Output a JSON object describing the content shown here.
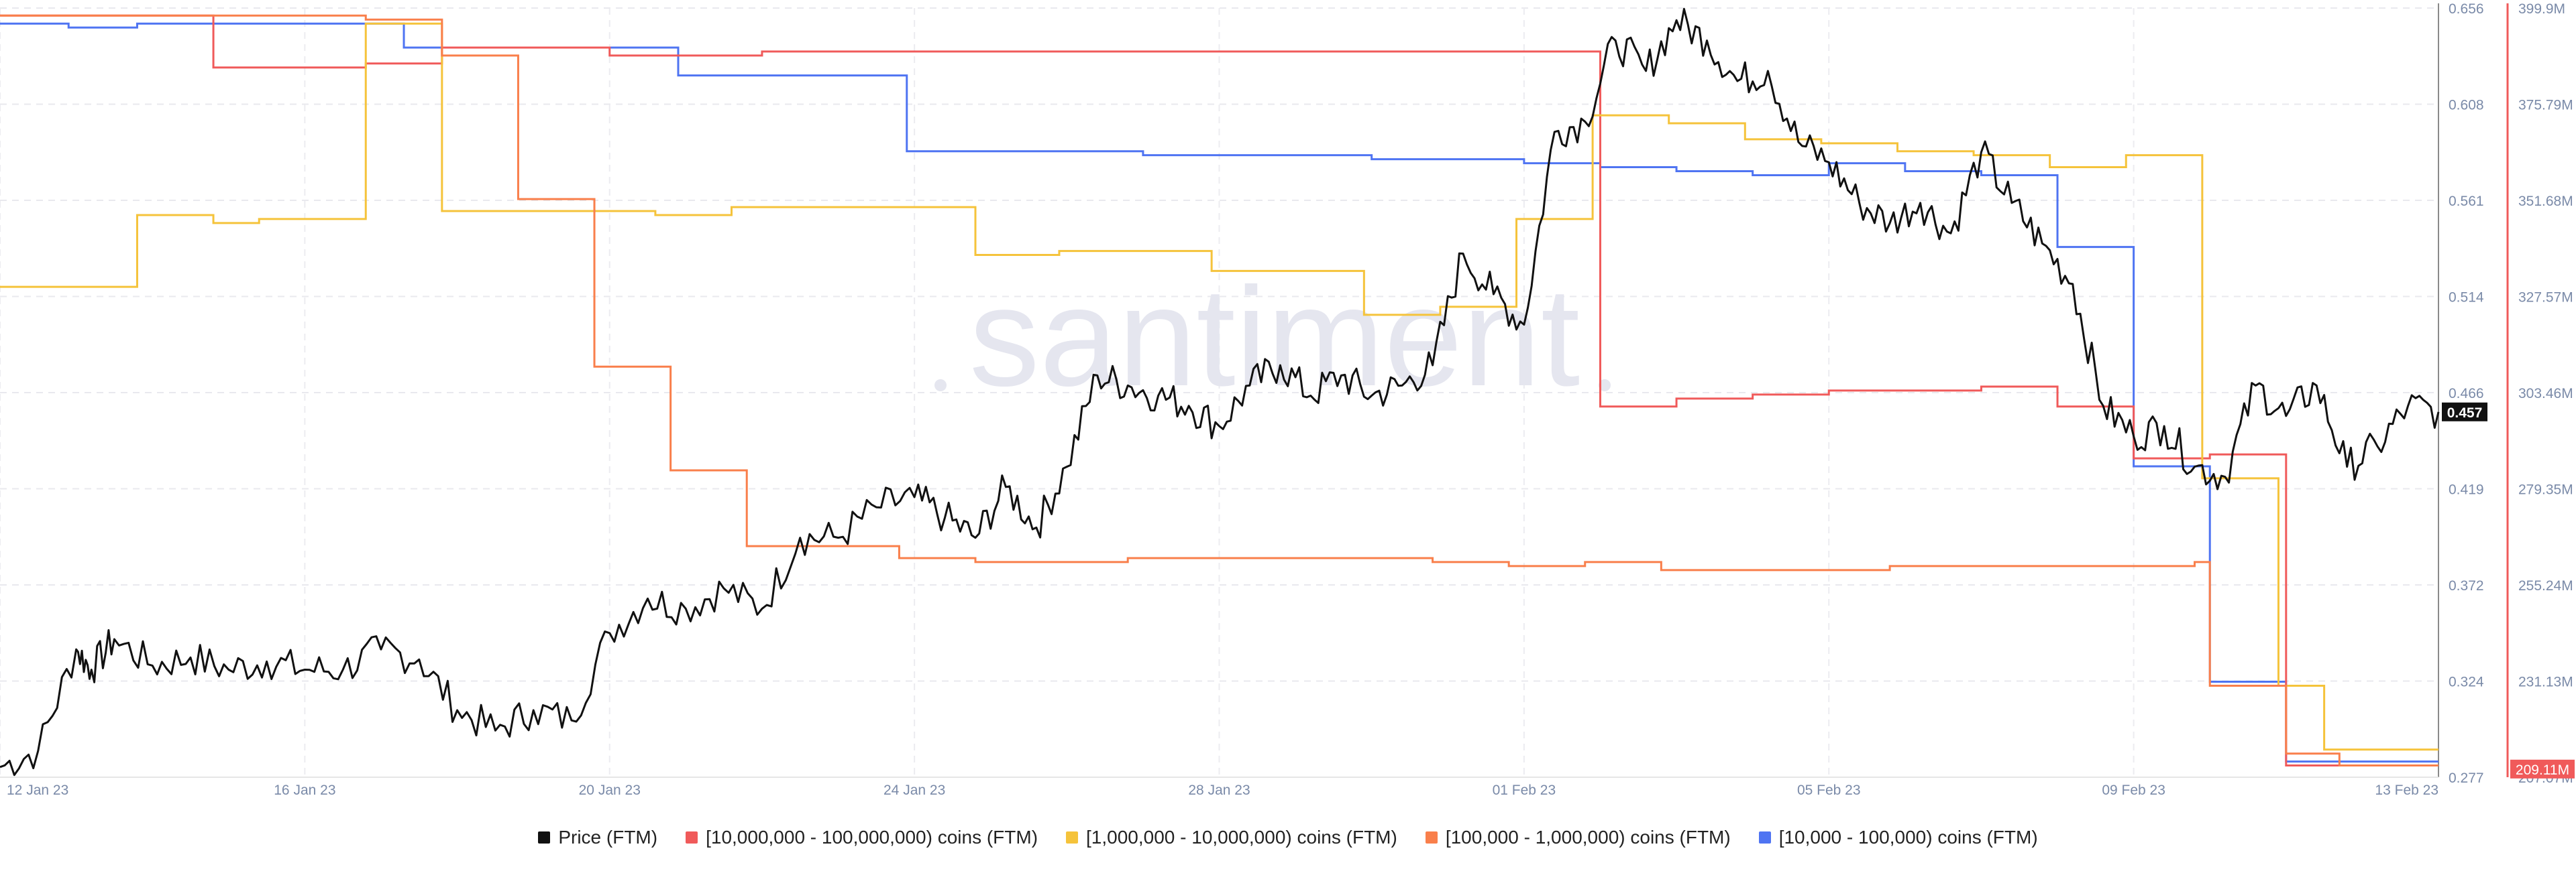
{
  "chart_data": {
    "type": "line",
    "watermark": "santiment",
    "x_ticks": [
      "12 Jan 23",
      "16 Jan 23",
      "20 Jan 23",
      "24 Jan 23",
      "28 Jan 23",
      "01 Feb 23",
      "05 Feb 23",
      "09 Feb 23",
      "13 Feb 23"
    ],
    "x_range_days": [
      0,
      32
    ],
    "price_axis": {
      "ticks": [
        "0.656",
        "0.608",
        "0.561",
        "0.514",
        "0.466",
        "0.419",
        "0.372",
        "0.324",
        "0.277"
      ],
      "ylim": [
        0.277,
        0.656
      ],
      "current_label": "0.457"
    },
    "supply_axis": {
      "ticks": [
        "399.9M",
        "375.79M",
        "351.68M",
        "327.57M",
        "303.46M",
        "279.35M",
        "255.24M",
        "231.13M",
        "207.07M"
      ],
      "ylim": [
        207.07,
        399.9
      ],
      "current_label": "209.11M"
    },
    "legend": [
      {
        "label": "Price (FTM)",
        "color": "#111111"
      },
      {
        "label": "[10,000,000 - 100,000,000) coins (FTM)",
        "color": "#f05a5a"
      },
      {
        "label": "[1,000,000 - 10,000,000) coins (FTM)",
        "color": "#f5c33b"
      },
      {
        "label": "[100,000  - 1,000,000) coins (FTM)",
        "color": "#f97f4b"
      },
      {
        "label": "[10,000 - 100,000) coins (FTM)",
        "color": "#4f74f2"
      }
    ],
    "series": [
      {
        "name": "[10,000 - 100,000) coins (FTM)",
        "color": "#4f74f2",
        "axis": "supply",
        "step": true,
        "x": [
          0,
          0.9,
          1.8,
          2.7,
          4.0,
          5.3,
          6.0,
          7.8,
          8.9,
          10.8,
          11.9,
          15.0,
          18.0,
          19.0,
          20.0,
          21.0,
          22.0,
          23.0,
          24.0,
          25.0,
          26.0,
          27.0,
          28.0,
          29.0,
          30.0,
          30.7,
          32.0
        ],
        "values": [
          396,
          395,
          396,
          396,
          396,
          390,
          390,
          390,
          383,
          383,
          364,
          363,
          362,
          362,
          361,
          360,
          359,
          358,
          361,
          359,
          358,
          340,
          285,
          231,
          211,
          211,
          211
        ]
      },
      {
        "name": "[10,000,000 - 100,000,000) coins (FTM)",
        "color": "#f05a5a",
        "axis": "supply",
        "step": true,
        "x": [
          0,
          1.8,
          2.8,
          4.8,
          5.8,
          6.8,
          8.0,
          10.0,
          12.8,
          20.0,
          21.0,
          22.0,
          23.0,
          24.0,
          25.0,
          26.0,
          27.0,
          28.0,
          29.0,
          30.0,
          30.7,
          32.0
        ],
        "values": [
          398,
          398,
          385,
          386,
          390,
          390,
          388,
          389,
          389,
          389,
          300,
          302,
          303,
          304,
          304,
          305,
          300,
          287,
          288,
          210,
          210,
          210
        ]
      },
      {
        "name": "[1,000,000 - 10,000,000) coins (FTM)",
        "color": "#f5c33b",
        "axis": "supply",
        "step": true,
        "x": [
          0,
          0.8,
          1.8,
          2.8,
          3.4,
          4.8,
          5.8,
          7.9,
          8.6,
          9.6,
          10.8,
          11.8,
          12.8,
          13.9,
          14.8,
          15.9,
          16.8,
          17.9,
          18.9,
          19.9,
          20.9,
          21.9,
          22.9,
          23.9,
          24.9,
          25.9,
          26.9,
          27.9,
          28.9,
          29.9,
          30.5,
          32.0
        ],
        "values": [
          330,
          330,
          348,
          346,
          347,
          396,
          349,
          349,
          348,
          350,
          350,
          350,
          338,
          339,
          339,
          334,
          334,
          323,
          325,
          347,
          373,
          371,
          367,
          366,
          364,
          363,
          360,
          363,
          282,
          230,
          214,
          214
        ]
      },
      {
        "name": "[100,000  - 1,000,000) coins (FTM)",
        "color": "#f97f4b",
        "axis": "supply",
        "step": true,
        "x": [
          0,
          1.8,
          4.8,
          5.8,
          6.8,
          7.8,
          8.8,
          9.8,
          11.8,
          12.8,
          13.8,
          14.8,
          15.8,
          16.8,
          17.8,
          18.8,
          19.8,
          20.8,
          21.8,
          22.8,
          23.8,
          24.8,
          25.8,
          26.8,
          27.8,
          28.8,
          29.0,
          30.0,
          30.7,
          32.0
        ],
        "values": [
          398,
          398,
          397,
          388,
          352,
          310,
          284,
          265,
          262,
          261,
          261,
          262,
          262,
          262,
          262,
          261,
          260,
          261,
          259,
          259,
          259,
          260,
          260,
          260,
          260,
          261,
          230,
          213,
          210,
          210
        ]
      }
    ],
    "price_series": {
      "name": "Price (FTM)",
      "color": "#111111",
      "axis": "price",
      "x": [
        0,
        0.5,
        1.0,
        1.2,
        1.5,
        2.0,
        2.5,
        3.0,
        3.5,
        4.0,
        4.5,
        5.0,
        5.5,
        6.0,
        6.5,
        7.0,
        7.5,
        8.0,
        8.5,
        9.0,
        9.5,
        10.0,
        10.5,
        11.0,
        11.5,
        12.0,
        12.4,
        12.8,
        13.2,
        13.6,
        14.0,
        14.4,
        14.8,
        15.2,
        15.6,
        16.0,
        16.4,
        16.8,
        17.2,
        17.6,
        18.0,
        18.4,
        18.8,
        19.2,
        19.6,
        20.0,
        20.4,
        20.8,
        21.2,
        21.6,
        22.0,
        22.4,
        22.8,
        23.2,
        23.6,
        24.0,
        24.4,
        24.8,
        25.2,
        25.6,
        26.0,
        26.4,
        26.8,
        27.2,
        27.6,
        28.0,
        28.4,
        28.8,
        29.2,
        29.6,
        30.0,
        30.4,
        30.8,
        31.2,
        31.6,
        32.0
      ],
      "values": [
        0.282,
        0.29,
        0.34,
        0.33,
        0.345,
        0.332,
        0.336,
        0.33,
        0.334,
        0.33,
        0.33,
        0.34,
        0.335,
        0.31,
        0.3,
        0.31,
        0.305,
        0.348,
        0.365,
        0.36,
        0.37,
        0.36,
        0.395,
        0.395,
        0.41,
        0.415,
        0.405,
        0.395,
        0.42,
        0.4,
        0.43,
        0.475,
        0.47,
        0.465,
        0.46,
        0.45,
        0.47,
        0.48,
        0.465,
        0.475,
        0.465,
        0.47,
        0.48,
        0.535,
        0.515,
        0.5,
        0.595,
        0.6,
        0.64,
        0.625,
        0.65,
        0.64,
        0.62,
        0.625,
        0.59,
        0.58,
        0.56,
        0.55,
        0.56,
        0.545,
        0.585,
        0.56,
        0.54,
        0.52,
        0.46,
        0.445,
        0.45,
        0.43,
        0.425,
        0.47,
        0.455,
        0.47,
        0.43,
        0.44,
        0.46,
        0.457
      ]
    }
  }
}
